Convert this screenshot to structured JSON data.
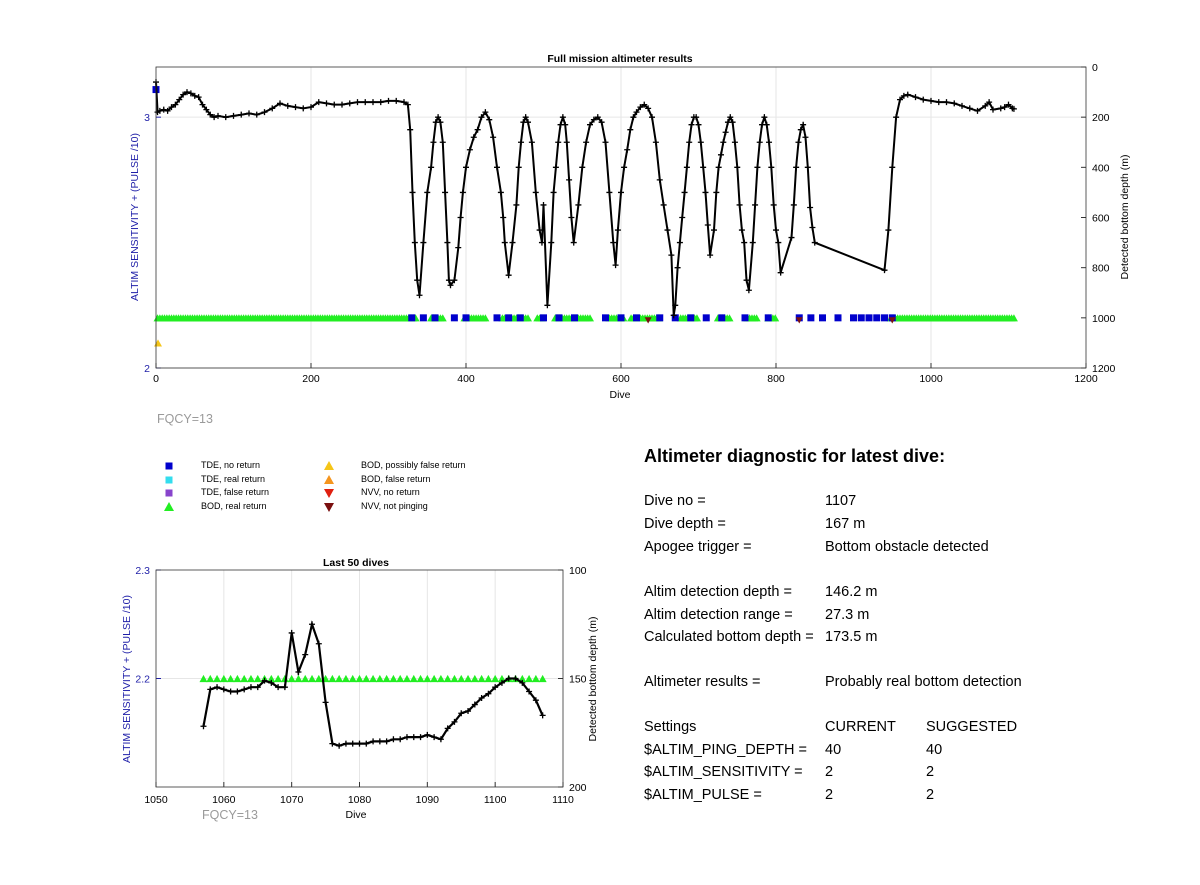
{
  "chart_data": [
    {
      "type": "scatter",
      "title": "Full mission altimeter results",
      "xlabel": "Dive",
      "ylabel_left": "ALTIM SENSITIVITY + (PULSE /10)",
      "ylabel_right": "Detected bottom depth (m)",
      "xlim": [
        0,
        1200
      ],
      "ylim_left": [
        2,
        3.2
      ],
      "ylim_right_reversed": [
        0,
        1200
      ],
      "xticks": [
        "0",
        "200",
        "400",
        "600",
        "800",
        "1000",
        "1200"
      ],
      "yticks_left": [
        "2",
        "3"
      ],
      "yticks_right": [
        "0",
        "200",
        "400",
        "600",
        "800",
        "1000",
        "1200"
      ],
      "grid": true,
      "depth_series": [
        [
          0,
          60
        ],
        [
          2,
          180
        ],
        [
          5,
          175
        ],
        [
          10,
          170
        ],
        [
          15,
          175
        ],
        [
          20,
          160
        ],
        [
          25,
          150
        ],
        [
          30,
          130
        ],
        [
          35,
          110
        ],
        [
          40,
          100
        ],
        [
          45,
          105
        ],
        [
          50,
          115
        ],
        [
          55,
          120
        ],
        [
          60,
          150
        ],
        [
          65,
          170
        ],
        [
          70,
          190
        ],
        [
          75,
          200
        ],
        [
          80,
          195
        ],
        [
          90,
          200
        ],
        [
          100,
          195
        ],
        [
          110,
          190
        ],
        [
          120,
          185
        ],
        [
          130,
          190
        ],
        [
          140,
          180
        ],
        [
          150,
          165
        ],
        [
          160,
          145
        ],
        [
          170,
          155
        ],
        [
          180,
          160
        ],
        [
          190,
          165
        ],
        [
          200,
          160
        ],
        [
          210,
          140
        ],
        [
          220,
          145
        ],
        [
          230,
          150
        ],
        [
          240,
          150
        ],
        [
          250,
          145
        ],
        [
          260,
          140
        ],
        [
          270,
          140
        ],
        [
          280,
          140
        ],
        [
          290,
          140
        ],
        [
          300,
          135
        ],
        [
          310,
          135
        ],
        [
          320,
          140
        ],
        [
          325,
          150
        ],
        [
          328,
          250
        ],
        [
          331,
          500
        ],
        [
          334,
          700
        ],
        [
          337,
          850
        ],
        [
          340,
          910
        ],
        [
          345,
          700
        ],
        [
          350,
          500
        ],
        [
          355,
          400
        ],
        [
          358,
          300
        ],
        [
          361,
          220
        ],
        [
          364,
          200
        ],
        [
          367,
          220
        ],
        [
          370,
          300
        ],
        [
          373,
          500
        ],
        [
          376,
          700
        ],
        [
          378,
          850
        ],
        [
          380,
          870
        ],
        [
          385,
          850
        ],
        [
          390,
          720
        ],
        [
          393,
          600
        ],
        [
          396,
          500
        ],
        [
          400,
          400
        ],
        [
          405,
          330
        ],
        [
          410,
          280
        ],
        [
          415,
          250
        ],
        [
          420,
          200
        ],
        [
          425,
          180
        ],
        [
          430,
          210
        ],
        [
          435,
          280
        ],
        [
          440,
          400
        ],
        [
          445,
          500
        ],
        [
          448,
          600
        ],
        [
          450,
          700
        ],
        [
          455,
          830
        ],
        [
          460,
          700
        ],
        [
          465,
          550
        ],
        [
          468,
          400
        ],
        [
          471,
          300
        ],
        [
          474,
          220
        ],
        [
          477,
          200
        ],
        [
          480,
          220
        ],
        [
          485,
          300
        ],
        [
          490,
          500
        ],
        [
          495,
          650
        ],
        [
          498,
          700
        ],
        [
          500,
          550
        ],
        [
          505,
          950
        ],
        [
          510,
          700
        ],
        [
          513,
          500
        ],
        [
          516,
          400
        ],
        [
          519,
          300
        ],
        [
          522,
          230
        ],
        [
          525,
          200
        ],
        [
          528,
          230
        ],
        [
          530,
          300
        ],
        [
          533,
          450
        ],
        [
          536,
          600
        ],
        [
          539,
          700
        ],
        [
          545,
          550
        ],
        [
          550,
          400
        ],
        [
          555,
          300
        ],
        [
          560,
          230
        ],
        [
          565,
          210
        ],
        [
          570,
          200
        ],
        [
          575,
          220
        ],
        [
          580,
          300
        ],
        [
          585,
          500
        ],
        [
          590,
          700
        ],
        [
          593,
          790
        ],
        [
          596,
          650
        ],
        [
          600,
          500
        ],
        [
          604,
          400
        ],
        [
          608,
          330
        ],
        [
          612,
          250
        ],
        [
          616,
          200
        ],
        [
          620,
          180
        ],
        [
          625,
          160
        ],
        [
          630,
          150
        ],
        [
          635,
          165
        ],
        [
          640,
          200
        ],
        [
          645,
          300
        ],
        [
          650,
          450
        ],
        [
          655,
          550
        ],
        [
          660,
          650
        ],
        [
          665,
          750
        ],
        [
          668,
          990
        ],
        [
          670,
          950
        ],
        [
          673,
          800
        ],
        [
          676,
          700
        ],
        [
          679,
          600
        ],
        [
          682,
          500
        ],
        [
          685,
          400
        ],
        [
          688,
          300
        ],
        [
          691,
          230
        ],
        [
          694,
          200
        ],
        [
          697,
          200
        ],
        [
          700,
          230
        ],
        [
          703,
          300
        ],
        [
          706,
          400
        ],
        [
          709,
          500
        ],
        [
          712,
          630
        ],
        [
          715,
          750
        ],
        [
          720,
          650
        ],
        [
          723,
          500
        ],
        [
          726,
          400
        ],
        [
          729,
          350
        ],
        [
          732,
          300
        ],
        [
          735,
          260
        ],
        [
          738,
          220
        ],
        [
          741,
          200
        ],
        [
          744,
          220
        ],
        [
          747,
          300
        ],
        [
          750,
          400
        ],
        [
          753,
          550
        ],
        [
          756,
          650
        ],
        [
          759,
          700
        ],
        [
          762,
          850
        ],
        [
          765,
          890
        ],
        [
          770,
          700
        ],
        [
          773,
          550
        ],
        [
          776,
          400
        ],
        [
          779,
          300
        ],
        [
          782,
          230
        ],
        [
          785,
          200
        ],
        [
          788,
          230
        ],
        [
          791,
          300
        ],
        [
          794,
          400
        ],
        [
          797,
          550
        ],
        [
          800,
          650
        ],
        [
          803,
          700
        ],
        [
          806,
          820
        ],
        [
          820,
          680
        ],
        [
          823,
          550
        ],
        [
          826,
          400
        ],
        [
          829,
          300
        ],
        [
          832,
          250
        ],
        [
          835,
          230
        ],
        [
          838,
          280
        ],
        [
          841,
          400
        ],
        [
          844,
          560
        ],
        [
          847,
          640
        ],
        [
          850,
          700
        ],
        [
          940,
          810
        ],
        [
          945,
          650
        ],
        [
          950,
          400
        ],
        [
          955,
          200
        ],
        [
          960,
          130
        ],
        [
          965,
          115
        ],
        [
          970,
          110
        ],
        [
          980,
          120
        ],
        [
          990,
          130
        ],
        [
          1000,
          135
        ],
        [
          1010,
          140
        ],
        [
          1020,
          140
        ],
        [
          1030,
          145
        ],
        [
          1040,
          155
        ],
        [
          1050,
          165
        ],
        [
          1060,
          175
        ],
        [
          1070,
          155
        ],
        [
          1075,
          140
        ],
        [
          1080,
          170
        ],
        [
          1090,
          165
        ],
        [
          1095,
          160
        ],
        [
          1100,
          150
        ],
        [
          1105,
          165
        ],
        [
          1107,
          167
        ]
      ],
      "tde_no_return": [
        [
          0,
          90
        ],
        [
          330,
          1000
        ],
        [
          345,
          1000
        ],
        [
          360,
          1000
        ],
        [
          385,
          1000
        ],
        [
          400,
          1000
        ],
        [
          440,
          1000
        ],
        [
          455,
          1000
        ],
        [
          470,
          1000
        ],
        [
          500,
          1000
        ],
        [
          520,
          1000
        ],
        [
          540,
          1000
        ],
        [
          580,
          1000
        ],
        [
          600,
          1000
        ],
        [
          620,
          1000
        ],
        [
          650,
          1000
        ],
        [
          670,
          1000
        ],
        [
          690,
          1000
        ],
        [
          710,
          1000
        ],
        [
          730,
          1000
        ],
        [
          760,
          1000
        ],
        [
          790,
          1000
        ],
        [
          830,
          1000
        ],
        [
          845,
          1000
        ],
        [
          860,
          1000
        ],
        [
          880,
          1000
        ],
        [
          900,
          1000
        ],
        [
          910,
          1000
        ],
        [
          920,
          1000
        ],
        [
          930,
          1000
        ],
        [
          940,
          1000
        ],
        [
          950,
          1000
        ]
      ],
      "bod_real_return_segments": [
        [
          2,
          335
        ],
        [
          355,
          370
        ],
        [
          398,
          425
        ],
        [
          447,
          482
        ],
        [
          492,
          500
        ],
        [
          515,
          560
        ],
        [
          585,
          605
        ],
        [
          613,
          650
        ],
        [
          677,
          700
        ],
        [
          725,
          742
        ],
        [
          763,
          775
        ],
        [
          790,
          800
        ],
        [
          948,
          1107
        ]
      ],
      "bod_false_return": [
        [
          0,
          1100
        ]
      ],
      "nvv_not_pinging": [
        [
          635,
          1010
        ],
        [
          830,
          1010
        ],
        [
          950,
          1010
        ]
      ]
    },
    {
      "type": "line",
      "title": "Last 50 dives",
      "xlabel": "Dive",
      "ylabel_left": "ALTIM SENSITIVITY + (PULSE /10)",
      "ylabel_right": "Detected bottom depth (m)",
      "xlim": [
        1050,
        1110
      ],
      "ylim_left": [
        2.1,
        2.3
      ],
      "ylim_right_reversed": [
        100,
        200
      ],
      "xticks": [
        "1050",
        "1060",
        "1070",
        "1080",
        "1090",
        "1100",
        "1110"
      ],
      "yticks_left": [
        "2.3",
        "2.2"
      ],
      "yticks_right": [
        "100",
        "150",
        "200"
      ],
      "grid": true,
      "dives": [
        1057,
        1058,
        1059,
        1060,
        1061,
        1062,
        1063,
        1064,
        1065,
        1066,
        1067,
        1068,
        1069,
        1070,
        1071,
        1072,
        1073,
        1074,
        1075,
        1076,
        1077,
        1078,
        1079,
        1080,
        1081,
        1082,
        1083,
        1084,
        1085,
        1086,
        1087,
        1088,
        1089,
        1090,
        1091,
        1092,
        1093,
        1094,
        1095,
        1096,
        1097,
        1098,
        1099,
        1100,
        1101,
        1102,
        1103,
        1104,
        1105,
        1106,
        1107
      ],
      "depth_m": [
        172,
        155,
        154,
        155,
        156,
        156,
        155,
        154,
        154,
        151,
        152,
        154,
        154,
        129,
        147,
        139,
        125,
        134,
        161,
        180,
        181,
        180,
        180,
        180,
        180,
        179,
        179,
        179,
        178,
        178,
        177,
        177,
        177,
        176,
        177,
        178,
        173,
        170,
        166,
        165,
        162,
        159,
        157,
        154,
        152,
        150,
        150,
        152,
        156,
        160,
        167
      ],
      "bod_real_return_dives": [
        1057,
        1058,
        1059,
        1060,
        1061,
        1062,
        1063,
        1064,
        1065,
        1066,
        1067,
        1068,
        1069,
        1070,
        1071,
        1072,
        1073,
        1074,
        1075,
        1076,
        1077,
        1078,
        1079,
        1080,
        1081,
        1082,
        1083,
        1084,
        1085,
        1086,
        1087,
        1088,
        1089,
        1090,
        1091,
        1092,
        1093,
        1094,
        1095,
        1096,
        1097,
        1098,
        1099,
        1100,
        1101,
        1102,
        1103,
        1104,
        1105,
        1106,
        1107
      ],
      "bod_level": 2.2
    }
  ],
  "fqcy_top": "FQCY=13",
  "fqcy_bottom": "FQCY=13",
  "legend": {
    "items": [
      {
        "label": "TDE, no return",
        "color": "#0000cc",
        "shape": "square"
      },
      {
        "label": "TDE, real return",
        "color": "#33ddee",
        "shape": "square"
      },
      {
        "label": "TDE, false return",
        "color": "#8844cc",
        "shape": "square"
      },
      {
        "label": "BOD, real return",
        "color": "#22ee22",
        "shape": "triangle-up"
      },
      {
        "label": "BOD, possibly false return",
        "color": "#f5c518",
        "shape": "triangle-up"
      },
      {
        "label": "BOD, false return",
        "color": "#f5951e",
        "shape": "triangle-up"
      },
      {
        "label": "NVV, no return",
        "color": "#e02010",
        "shape": "triangle-down"
      },
      {
        "label": "NVV, not pinging",
        "color": "#7a1010",
        "shape": "triangle-down"
      }
    ]
  },
  "diagnostic": {
    "title": "Altimeter diagnostic for latest dive:",
    "dive_no_label": "Dive no =",
    "dive_no": "1107",
    "dive_depth_label": "Dive depth =",
    "dive_depth": "167 m",
    "apogee_label": "Apogee trigger =",
    "apogee": "Bottom obstacle detected",
    "altim_depth_label": "Altim detection depth =",
    "altim_depth": "146.2 m",
    "altim_range_label": "Altim detection range =",
    "altim_range": "27.3 m",
    "calc_depth_label": "Calculated bottom depth =",
    "calc_depth": "173.5 m",
    "results_label": "Altimeter results =",
    "results": "Probably real bottom detection",
    "settings_label": "Settings",
    "current_label": "CURRENT",
    "suggested_label": "SUGGESTED",
    "settings": [
      {
        "name": "$ALTIM_PING_DEPTH =",
        "current": "40",
        "suggested": "40"
      },
      {
        "name": "$ALTIM_SENSITIVITY =",
        "current": "2",
        "suggested": "2"
      },
      {
        "name": "$ALTIM_PULSE =",
        "current": "2",
        "suggested": "2"
      }
    ]
  },
  "colors": {
    "axis_blue": "#1f1fa8",
    "tde_no_return": "#0000cc",
    "bod_real": "#22ee22",
    "bod_possibly_false": "#f5c518",
    "nvv_not_pinging": "#7a1010",
    "depth_line": "#000000",
    "grid": "#e6e6e6"
  }
}
